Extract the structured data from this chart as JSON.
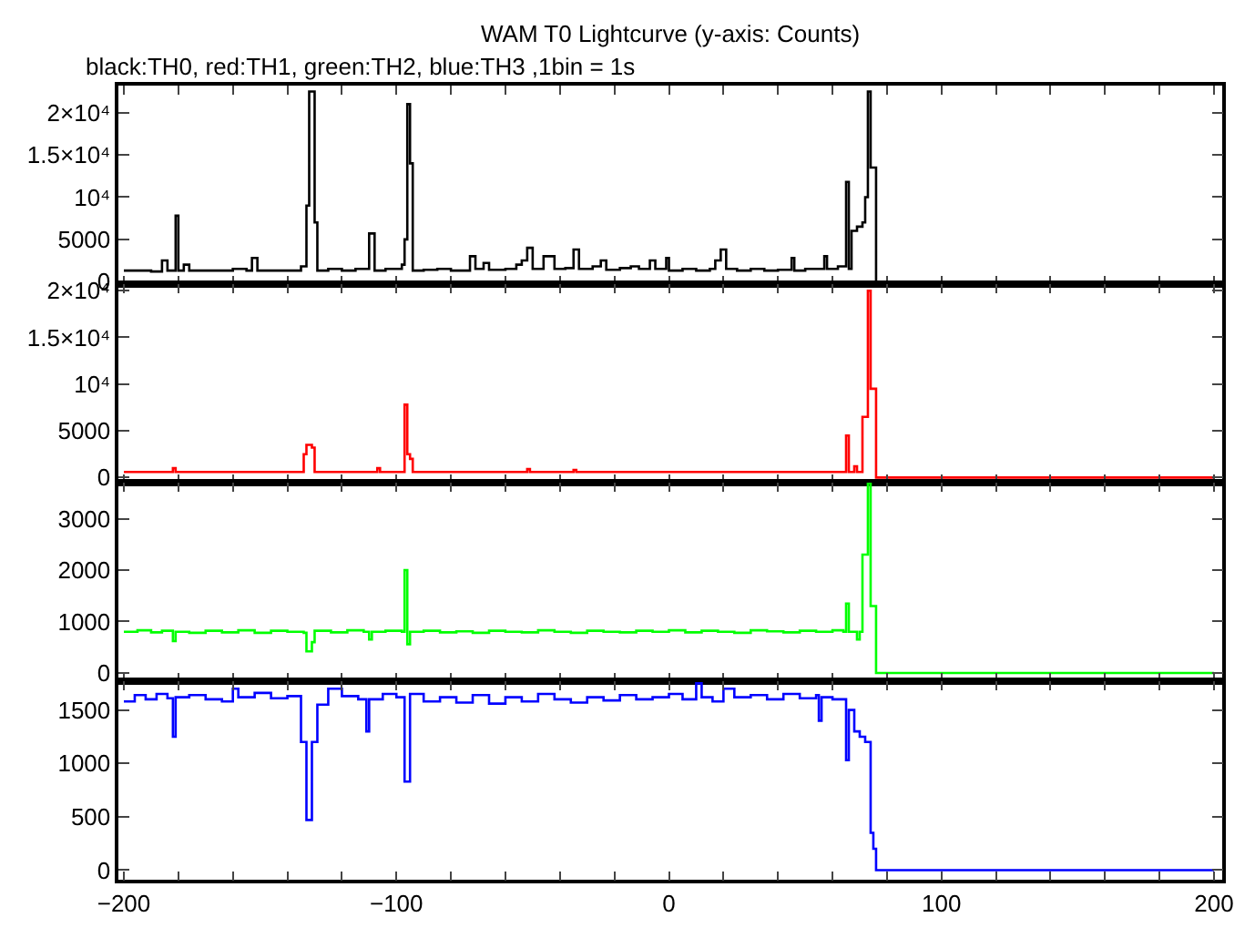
{
  "chart_data": [
    {
      "type": "step",
      "title": "WAM T0 Lightcurve (y-axis: Counts)",
      "subtitle": "black:TH0, red:TH1, green:TH2, blue:TH3 ,1bin = 1s",
      "tick_labels": "y",
      "xlim": [
        -202,
        203
      ],
      "xticks": [
        {
          "value": -200,
          "label": null
        },
        {
          "value": -180,
          "label": null
        },
        {
          "value": -160,
          "label": null
        },
        {
          "value": -140,
          "label": null
        },
        {
          "value": -120,
          "label": null
        },
        {
          "value": -100,
          "label": null
        },
        {
          "value": -80,
          "label": null
        },
        {
          "value": -60,
          "label": null
        },
        {
          "value": -40,
          "label": null
        },
        {
          "value": -20,
          "label": null
        },
        {
          "value": 0,
          "label": null
        },
        {
          "value": 20,
          "label": null
        },
        {
          "value": 40,
          "label": null
        },
        {
          "value": 60,
          "label": null
        },
        {
          "value": 80,
          "label": null
        },
        {
          "value": 100,
          "label": null
        },
        {
          "value": 120,
          "label": null
        },
        {
          "value": 140,
          "label": null
        },
        {
          "value": 160,
          "label": null
        },
        {
          "value": 180,
          "label": null
        },
        {
          "value": 200,
          "label": null
        }
      ],
      "ylim": [
        -300,
        23200
      ],
      "yticks": [
        0,
        5000,
        {
          "value": 10000,
          "label": "10⁴"
        },
        {
          "value": 15000,
          "label": "1.5×10⁴"
        },
        {
          "value": 20000,
          "label": "2×10⁴"
        }
      ],
      "x": [
        -200,
        -190,
        -186,
        -184,
        -181,
        -180,
        -178,
        -176,
        -165,
        -160,
        -155,
        -153,
        -151,
        -140,
        -135,
        -133,
        -132,
        -130,
        -129,
        -125,
        -120,
        -115,
        -110,
        -108,
        -104,
        -98,
        -97,
        -96,
        -95,
        -94,
        -90,
        -85,
        -80,
        -73,
        -71,
        -68,
        -66,
        -60,
        -56,
        -54,
        -52,
        -50,
        -46,
        -44,
        -42,
        -38,
        -35,
        -33,
        -28,
        -25,
        -23,
        -18,
        -14,
        -11,
        -7,
        -5,
        -1,
        0,
        5,
        10,
        15,
        17,
        19,
        21,
        25,
        30,
        35,
        40,
        45,
        46,
        50,
        57,
        58,
        62,
        65,
        66,
        67,
        69,
        71,
        72,
        73,
        74,
        76,
        200
      ],
      "series": [
        {
          "color": "#000000",
          "values": [
            1300,
            1200,
            2500,
            1300,
            7800,
            1300,
            2000,
            1300,
            1300,
            1500,
            1300,
            2800,
            1300,
            1300,
            1800,
            9000,
            22500,
            7000,
            1300,
            1500,
            1300,
            1500,
            5700,
            1300,
            1500,
            2000,
            5000,
            21000,
            14000,
            1300,
            1400,
            1500,
            1300,
            3000,
            1500,
            2200,
            1400,
            1500,
            2000,
            2500,
            4000,
            1500,
            3000,
            3000,
            1500,
            1600,
            3800,
            1500,
            1800,
            2500,
            1400,
            1600,
            1800,
            1500,
            2500,
            1500,
            2800,
            1300,
            1500,
            1300,
            1500,
            2500,
            3800,
            1500,
            1300,
            1500,
            1300,
            1400,
            2800,
            1300,
            1500,
            3000,
            1500,
            1800,
            11800,
            1500,
            6000,
            6500,
            7000,
            10000,
            22500,
            13500,
            0,
            0
          ]
        }
      ]
    },
    {
      "type": "step",
      "tick_labels": "y",
      "xlim": [
        -202,
        203
      ],
      "xticks": [
        {
          "value": -200,
          "label": null
        },
        {
          "value": -180,
          "label": null
        },
        {
          "value": -160,
          "label": null
        },
        {
          "value": -140,
          "label": null
        },
        {
          "value": -120,
          "label": null
        },
        {
          "value": -100,
          "label": null
        },
        {
          "value": -80,
          "label": null
        },
        {
          "value": -60,
          "label": null
        },
        {
          "value": -40,
          "label": null
        },
        {
          "value": -20,
          "label": null
        },
        {
          "value": 0,
          "label": null
        },
        {
          "value": 20,
          "label": null
        },
        {
          "value": 40,
          "label": null
        },
        {
          "value": 60,
          "label": null
        },
        {
          "value": 80,
          "label": null
        },
        {
          "value": 100,
          "label": null
        },
        {
          "value": 120,
          "label": null
        },
        {
          "value": 140,
          "label": null
        },
        {
          "value": 160,
          "label": null
        },
        {
          "value": 180,
          "label": null
        },
        {
          "value": 200,
          "label": null
        }
      ],
      "ylim": [
        -550,
        20700
      ],
      "yticks": [
        0,
        5000,
        {
          "value": 10000,
          "label": "10⁴"
        },
        {
          "value": 15000,
          "label": "1.5×10⁴"
        },
        {
          "value": 20000,
          "label": "2×10⁴"
        }
      ],
      "x": [
        -200,
        -183,
        -182,
        -181,
        -160,
        -134,
        -133,
        -131,
        -130,
        -107,
        -106,
        -97,
        -96,
        -95,
        -94,
        -52,
        -51,
        -35,
        -34,
        0,
        30,
        65,
        66,
        68,
        69,
        71,
        73,
        74,
        76,
        200
      ],
      "series": [
        {
          "color": "#ff0000",
          "values": [
            600,
            600,
            1000,
            600,
            600,
            2500,
            3500,
            3200,
            600,
            1000,
            600,
            7800,
            2500,
            2000,
            600,
            900,
            600,
            800,
            600,
            600,
            600,
            4500,
            600,
            1200,
            600,
            6500,
            20000,
            9500,
            0,
            0
          ]
        }
      ]
    },
    {
      "type": "step",
      "tick_labels": "y",
      "xlim": [
        -202,
        203
      ],
      "xticks": [
        {
          "value": -200,
          "label": null
        },
        {
          "value": -180,
          "label": null
        },
        {
          "value": -160,
          "label": null
        },
        {
          "value": -140,
          "label": null
        },
        {
          "value": -120,
          "label": null
        },
        {
          "value": -100,
          "label": null
        },
        {
          "value": -80,
          "label": null
        },
        {
          "value": -60,
          "label": null
        },
        {
          "value": -40,
          "label": null
        },
        {
          "value": -20,
          "label": null
        },
        {
          "value": 0,
          "label": null
        },
        {
          "value": 20,
          "label": null
        },
        {
          "value": 40,
          "label": null
        },
        {
          "value": 60,
          "label": null
        },
        {
          "value": 80,
          "label": null
        },
        {
          "value": 100,
          "label": null
        },
        {
          "value": 120,
          "label": null
        },
        {
          "value": 140,
          "label": null
        },
        {
          "value": 160,
          "label": null
        },
        {
          "value": 180,
          "label": null
        },
        {
          "value": 200,
          "label": null
        }
      ],
      "ylim": [
        -160,
        3700
      ],
      "yticks": [
        0,
        1000,
        2000,
        3000
      ],
      "x": [
        -200,
        -195,
        -190,
        -186,
        -182,
        -181,
        -176,
        -170,
        -164,
        -158,
        -152,
        -146,
        -140,
        -134,
        -133,
        -131,
        -130,
        -124,
        -118,
        -112,
        -110,
        -109,
        -104,
        -98,
        -97,
        -96,
        -95,
        -90,
        -84,
        -78,
        -72,
        -66,
        -60,
        -54,
        -48,
        -42,
        -36,
        -30,
        -24,
        -18,
        -12,
        -6,
        0,
        6,
        12,
        18,
        24,
        30,
        36,
        42,
        48,
        54,
        60,
        64,
        65,
        66,
        69,
        70,
        71,
        73,
        74,
        76,
        200
      ],
      "series": [
        {
          "color": "#00ff00",
          "values": [
            800,
            830,
            790,
            820,
            620,
            800,
            780,
            820,
            790,
            830,
            780,
            820,
            800,
            780,
            420,
            600,
            820,
            790,
            830,
            800,
            650,
            800,
            820,
            800,
            2000,
            560,
            800,
            820,
            790,
            810,
            780,
            820,
            800,
            790,
            830,
            800,
            780,
            820,
            800,
            790,
            820,
            800,
            830,
            790,
            820,
            800,
            780,
            830,
            810,
            790,
            820,
            800,
            830,
            800,
            1350,
            800,
            650,
            800,
            2300,
            3700,
            1300,
            0,
            0
          ]
        }
      ]
    },
    {
      "type": "step",
      "xlim": [
        -202,
        203
      ],
      "xticks": [
        {
          "value": -200,
          "label": "−200"
        },
        {
          "value": -180,
          "label": null
        },
        {
          "value": -160,
          "label": null
        },
        {
          "value": -140,
          "label": null
        },
        {
          "value": -120,
          "label": null
        },
        {
          "value": -100,
          "label": "−100"
        },
        {
          "value": -80,
          "label": null
        },
        {
          "value": -60,
          "label": null
        },
        {
          "value": -40,
          "label": null
        },
        {
          "value": -20,
          "label": null
        },
        0,
        {
          "value": 20,
          "label": null
        },
        {
          "value": 40,
          "label": null
        },
        {
          "value": 60,
          "label": null
        },
        {
          "value": 80,
          "label": null
        },
        100,
        {
          "value": 120,
          "label": null
        },
        {
          "value": 140,
          "label": null
        },
        {
          "value": 160,
          "label": null
        },
        {
          "value": 180,
          "label": null
        },
        200
      ],
      "ylim": [
        -90,
        1770
      ],
      "yticks": [
        0,
        500,
        1000,
        1500
      ],
      "x": [
        -200,
        -196,
        -192,
        -188,
        -184,
        -182,
        -181,
        -176,
        -170,
        -164,
        -160,
        -158,
        -152,
        -146,
        -140,
        -135,
        -133,
        -131,
        -129,
        -125,
        -120,
        -114,
        -111,
        -110,
        -105,
        -100,
        -97,
        -95,
        -90,
        -84,
        -78,
        -72,
        -66,
        -60,
        -54,
        -48,
        -42,
        -36,
        -30,
        -24,
        -18,
        -12,
        -6,
        0,
        5,
        10,
        12,
        16,
        20,
        24,
        30,
        36,
        42,
        48,
        54,
        55,
        56,
        60,
        65,
        66,
        68,
        70,
        72,
        74,
        75,
        76,
        200
      ],
      "series": [
        {
          "color": "#0000ff",
          "values": [
            1580,
            1640,
            1600,
            1650,
            1610,
            1250,
            1620,
            1640,
            1600,
            1580,
            1700,
            1620,
            1660,
            1610,
            1630,
            1200,
            470,
            1200,
            1550,
            1700,
            1630,
            1600,
            1300,
            1600,
            1650,
            1620,
            830,
            1650,
            1580,
            1620,
            1570,
            1640,
            1560,
            1620,
            1580,
            1650,
            1600,
            1570,
            1620,
            1590,
            1640,
            1600,
            1620,
            1650,
            1600,
            1750,
            1620,
            1580,
            1700,
            1620,
            1640,
            1600,
            1650,
            1610,
            1640,
            1400,
            1620,
            1600,
            1030,
            1500,
            1300,
            1250,
            1200,
            350,
            200,
            0,
            0
          ]
        }
      ]
    }
  ]
}
